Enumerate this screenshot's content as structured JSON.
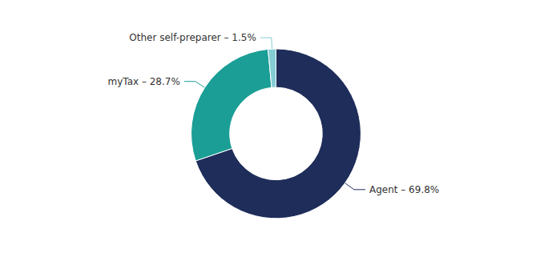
{
  "chart_data": {
    "type": "donut",
    "categories": [
      "Agent – 69.8%",
      "myTax – 28.7%",
      "Other self-preparer – 1.5%"
    ],
    "values": [
      69.8,
      28.7,
      1.5
    ],
    "colors": [
      "#1e2d5a",
      "#1a9e96",
      "#85cdd4"
    ]
  }
}
